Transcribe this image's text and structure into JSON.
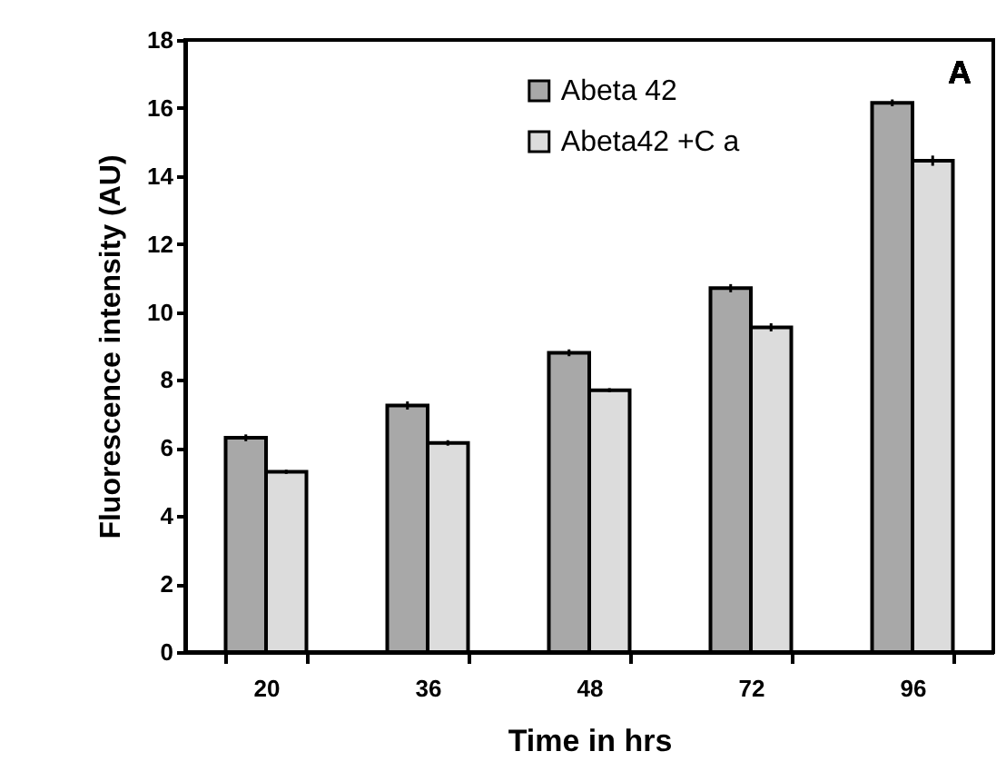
{
  "chart_data": {
    "type": "bar",
    "xlabel": "Time in hrs",
    "ylabel": "Fluorescence intensity (AU)",
    "categories": [
      "20",
      "36",
      "48",
      "72",
      "96"
    ],
    "series": [
      {
        "name": "Abeta 42",
        "color": "#a8a8a8",
        "values": [
          6.3,
          7.25,
          8.8,
          10.7,
          16.15
        ],
        "errors": [
          0.1,
          0.12,
          0.1,
          0.12,
          0.1
        ]
      },
      {
        "name": "Abeta42 +C a",
        "color": "#dcdcdc",
        "values": [
          5.3,
          6.15,
          7.7,
          9.55,
          14.45
        ],
        "errors": [
          0.06,
          0.08,
          0.06,
          0.12,
          0.15
        ]
      }
    ],
    "ylim": [
      0,
      18
    ],
    "yticks": [
      0,
      2,
      4,
      6,
      8,
      10,
      12,
      14,
      16,
      18
    ],
    "annotations": [
      "A"
    ],
    "legend": "top",
    "grid": false
  }
}
